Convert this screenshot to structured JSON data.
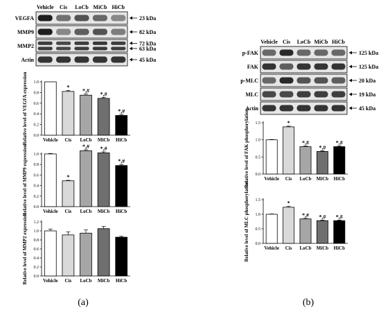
{
  "lanes": [
    "Vehicle",
    "Cis",
    "LoCb",
    "MiCb",
    "HiCb"
  ],
  "bar_fills": [
    "#ffffff",
    "#d9d9d9",
    "#a6a6a6",
    "#6f6f6f",
    "#000000"
  ],
  "blots_a": [
    {
      "protein": "VEGFA",
      "kda": [
        "23 kDa"
      ],
      "intensity": [
        0.95,
        0.55,
        0.7,
        0.6,
        0.45
      ]
    },
    {
      "protein": "MMP9",
      "kda": [
        "82 kDa"
      ],
      "intensity": [
        0.95,
        0.45,
        0.65,
        0.7,
        0.5
      ]
    },
    {
      "protein": "MMP2",
      "kda": [
        "72 kDa",
        "63 kDa"
      ],
      "intensity": [
        0.8,
        0.75,
        0.8,
        0.82,
        0.8
      ]
    },
    {
      "protein": "Actin",
      "kda": [
        "45 kDa"
      ],
      "intensity": [
        0.85,
        0.85,
        0.85,
        0.85,
        0.85
      ]
    }
  ],
  "blots_b": [
    {
      "protein": "p-FAK",
      "kda": [
        "125 kDa"
      ],
      "intensity": [
        0.6,
        0.9,
        0.6,
        0.6,
        0.6
      ]
    },
    {
      "protein": "FAK",
      "kda": [
        "125 kDa"
      ],
      "intensity": [
        0.85,
        0.65,
        0.85,
        0.85,
        0.85
      ]
    },
    {
      "protein": "p-MLC",
      "kda": [
        "20 kDa"
      ],
      "intensity": [
        0.6,
        0.9,
        0.7,
        0.7,
        0.65
      ]
    },
    {
      "protein": "MLC",
      "kda": [
        "19 kDa"
      ],
      "intensity": [
        0.75,
        0.75,
        0.8,
        0.8,
        0.8
      ]
    },
    {
      "protein": "Actin",
      "kda": [
        "45 kDa"
      ],
      "intensity": [
        0.85,
        0.85,
        0.85,
        0.85,
        0.85
      ]
    }
  ],
  "chart_data": [
    {
      "type": "bar",
      "panel": "a",
      "ylabel": "Relative level of VEGFA expression",
      "categories": [
        "Vehicle",
        "Cis",
        "LoCb",
        "MiCb",
        "HiCb"
      ],
      "values": [
        1.0,
        0.82,
        0.75,
        0.69,
        0.37
      ],
      "errors": [
        0.0,
        0.02,
        0.02,
        0.02,
        0.02
      ],
      "annotations": [
        "",
        "*",
        "*,#",
        "*,#",
        "*,#"
      ],
      "ylim": [
        0,
        1.0
      ],
      "yticks": [
        "0.0",
        "0.2",
        "0.4",
        "0.6",
        "0.8",
        "1.0"
      ]
    },
    {
      "type": "bar",
      "panel": "a",
      "ylabel": "Relative level of MMP9 expression",
      "categories": [
        "Vehicle",
        "Cis",
        "LoCb",
        "MiCb",
        "HiCb"
      ],
      "values": [
        1.0,
        0.49,
        1.06,
        1.02,
        0.78
      ],
      "errors": [
        0.01,
        0.01,
        0.02,
        0.02,
        0.02
      ],
      "annotations": [
        "",
        "*",
        "*,#",
        "*,#",
        "*,#"
      ],
      "ylim": [
        0,
        1.0
      ],
      "yticks": [
        "0.0",
        "0.2",
        "0.4",
        "0.6",
        "0.8",
        "1.0"
      ]
    },
    {
      "type": "bar",
      "panel": "a",
      "ylabel": "Relative level of MMP2 expression",
      "categories": [
        "Vehicle",
        "Cis",
        "LoCb",
        "MiCb",
        "HiCb"
      ],
      "values": [
        1.0,
        0.91,
        0.95,
        1.05,
        0.86
      ],
      "errors": [
        0.04,
        0.07,
        0.07,
        0.05,
        0.02
      ],
      "annotations": [
        "",
        "",
        "",
        "",
        ""
      ],
      "ylim": [
        0,
        1.2
      ],
      "yticks": [
        "0.0",
        "0.2",
        "0.4",
        "0.6",
        "0.8",
        "1.0",
        "1.2"
      ]
    },
    {
      "type": "bar",
      "panel": "b",
      "ylabel": "Relative level of FAK phosphorylation",
      "categories": [
        "Vehicle",
        "Cis",
        "LoCb",
        "MiCb",
        "HiCb"
      ],
      "values": [
        1.0,
        1.38,
        0.8,
        0.66,
        0.8
      ],
      "errors": [
        0.01,
        0.02,
        0.02,
        0.02,
        0.02
      ],
      "annotations": [
        "",
        "*",
        "*,#",
        "*,#",
        "*,#"
      ],
      "ylim": [
        0,
        1.5
      ],
      "yticks": [
        "0.0",
        "0.5",
        "1.0",
        "1.5"
      ]
    },
    {
      "type": "bar",
      "panel": "b",
      "ylabel": "Relative level of MLC phosphorylation",
      "categories": [
        "Vehicle",
        "Cis",
        "LoCb",
        "MiCb",
        "HiCb"
      ],
      "values": [
        1.0,
        1.24,
        0.84,
        0.78,
        0.78
      ],
      "errors": [
        0.01,
        0.03,
        0.02,
        0.02,
        0.02
      ],
      "annotations": [
        "",
        "*",
        "*,#",
        "*,#",
        "*,#"
      ],
      "ylim": [
        0,
        1.5
      ],
      "yticks": [
        "0.0",
        "0.5",
        "1.0",
        "1.5"
      ]
    }
  ],
  "panel_labels": [
    "(a)",
    "(b)"
  ]
}
